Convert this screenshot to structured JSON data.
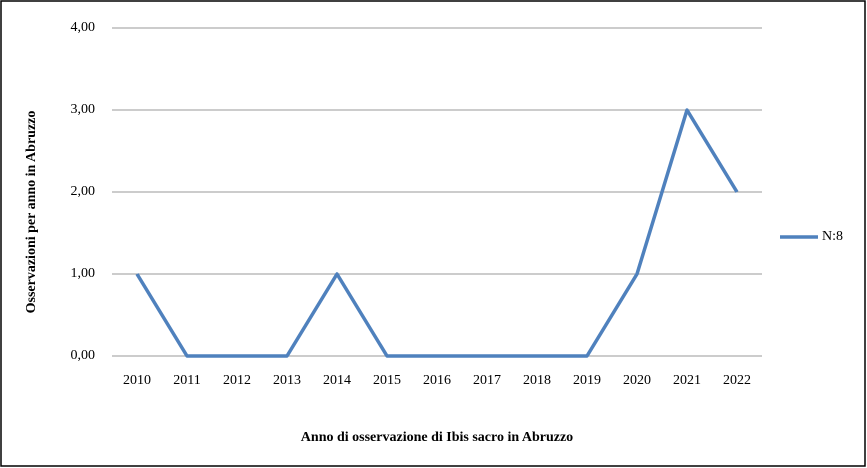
{
  "chart_data": {
    "type": "line",
    "xlabel": "Anno di osservazione di Ibis sacro in Abruzzo",
    "ylabel": "Osservazioni per anno in Abruzzo",
    "categories": [
      "2010",
      "2011",
      "2012",
      "2013",
      "2014",
      "2015",
      "2016",
      "2017",
      "2018",
      "2019",
      "2020",
      "2021",
      "2022"
    ],
    "series": [
      {
        "name": "N:8",
        "color": "#4f81bd",
        "values": [
          1,
          0,
          0,
          0,
          1,
          0,
          0,
          0,
          0,
          0,
          1,
          3,
          2
        ]
      }
    ],
    "ylim": [
      0,
      4
    ],
    "yticks": [
      {
        "value": 0,
        "label": "0,00"
      },
      {
        "value": 1,
        "label": "1,00"
      },
      {
        "value": 2,
        "label": "2,00"
      },
      {
        "value": 3,
        "label": "3,00"
      },
      {
        "value": 4,
        "label": "4,00"
      }
    ],
    "grid": true,
    "legend": "right"
  }
}
